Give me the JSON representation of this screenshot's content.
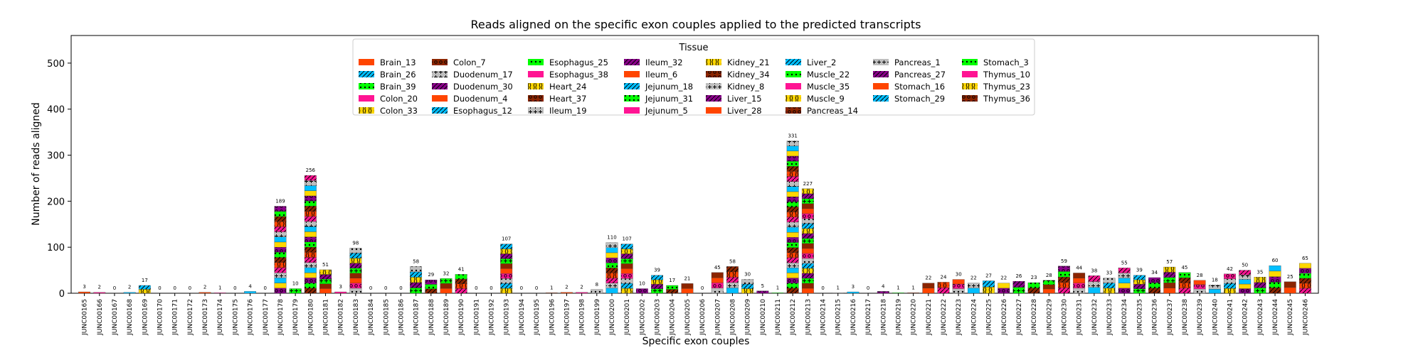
{
  "chart_data": {
    "type": "bar",
    "stacked": true,
    "title": "Reads aligned on the specific exon couples applied to the predicted transcripts",
    "xlabel": "Specific exon couples",
    "ylabel": "Number of reads aligned",
    "ylim": [
      0,
      560
    ],
    "yticks": [
      0,
      100,
      200,
      300,
      400,
      500
    ],
    "legend": {
      "title": "Tissue",
      "placement": "top-center",
      "columns": [
        [
          "Brain_13",
          "Brain_26",
          "Brain_39",
          "Colon_20",
          "Colon_33"
        ],
        [
          "Colon_7",
          "Duodenum_17",
          "Duodenum_30",
          "Duodenum_4",
          "Esophagus_12"
        ],
        [
          "Esophagus_25",
          "Esophagus_38",
          "Heart_24",
          "Heart_37",
          "Ileum_19"
        ],
        [
          "Ileum_32",
          "Ileum_6",
          "Jejunum_18",
          "Jejunum_31",
          "Jejunum_5"
        ],
        [
          "Kidney_21",
          "Kidney_34",
          "Kidney_8",
          "Liver_15",
          "Liver_28"
        ],
        [
          "Liver_2",
          "Muscle_22",
          "Muscle_35",
          "Muscle_9",
          "Pancreas_14"
        ],
        [
          "Pancreas_1",
          "Pancreas_27",
          "Stomach_16",
          "Stomach_29"
        ],
        [
          "Stomach_3",
          "Thymus_10",
          "Thymus_23",
          "Thymus_36"
        ]
      ]
    },
    "series_colors": [
      "#ff4500",
      "#00bfff",
      "#00ff00",
      "#ff1493",
      "#ffd700",
      "#8b2500",
      "#bebebe",
      "#8b008b"
    ],
    "categories": [
      "JUNC00165",
      "JUNC00166",
      "JUNC00167",
      "JUNC00168",
      "JUNC00169",
      "JUNC00170",
      "JUNC00171",
      "JUNC00172",
      "JUNC00173",
      "JUNC00174",
      "JUNC00175",
      "JUNC00176",
      "JUNC00177",
      "JUNC00178",
      "JUNC00179",
      "JUNC00180",
      "JUNC00181",
      "JUNC00182",
      "JUNC00183",
      "JUNC00184",
      "JUNC00185",
      "JUNC00186",
      "JUNC00187",
      "JUNC00188",
      "JUNC00189",
      "JUNC00190",
      "JUNC00191",
      "JUNC00192",
      "JUNC00193",
      "JUNC00194",
      "JUNC00195",
      "JUNC00196",
      "JUNC00197",
      "JUNC00198",
      "JUNC00199",
      "JUNC00200",
      "JUNC00201",
      "JUNC00202",
      "JUNC00203",
      "JUNC00204",
      "JUNC00205",
      "JUNC00206",
      "JUNC00207",
      "JUNC00208",
      "JUNC00209",
      "JUNC00210",
      "JUNC00211",
      "JUNC00212",
      "JUNC00213",
      "JUNC00214",
      "JUNC00215",
      "JUNC00216",
      "JUNC00217",
      "JUNC00218",
      "JUNC00219",
      "JUNC00220",
      "JUNC00221",
      "JUNC00222",
      "JUNC00223",
      "JUNC00224",
      "JUNC00225",
      "JUNC00226",
      "JUNC00227",
      "JUNC00228",
      "JUNC00229",
      "JUNC00230",
      "JUNC00231",
      "JUNC00232",
      "JUNC00233",
      "JUNC00234",
      "JUNC00235",
      "JUNC00236",
      "JUNC00237",
      "JUNC00238",
      "JUNC00239",
      "JUNC00240",
      "JUNC00241",
      "JUNC00242",
      "JUNC00243",
      "JUNC00244",
      "JUNC00245",
      "JUNC00246"
    ],
    "totals": [
      3,
      2,
      0,
      2,
      17,
      0,
      0,
      0,
      2,
      1,
      0,
      4,
      0,
      189,
      10,
      256,
      51,
      3,
      98,
      0,
      0,
      0,
      58,
      29,
      32,
      41,
      0,
      0,
      107,
      0,
      0,
      1,
      2,
      2,
      8,
      110,
      107,
      10,
      39,
      17,
      21,
      0,
      45,
      58,
      30,
      5,
      1,
      331,
      227,
      0,
      1,
      3,
      0,
      4,
      1,
      1,
      22,
      24,
      30,
      22,
      27,
      22,
      26,
      23,
      28,
      59,
      44,
      38,
      33,
      55,
      39,
      34,
      57,
      45,
      28,
      18,
      42,
      50,
      35,
      60,
      25,
      65
    ]
  }
}
